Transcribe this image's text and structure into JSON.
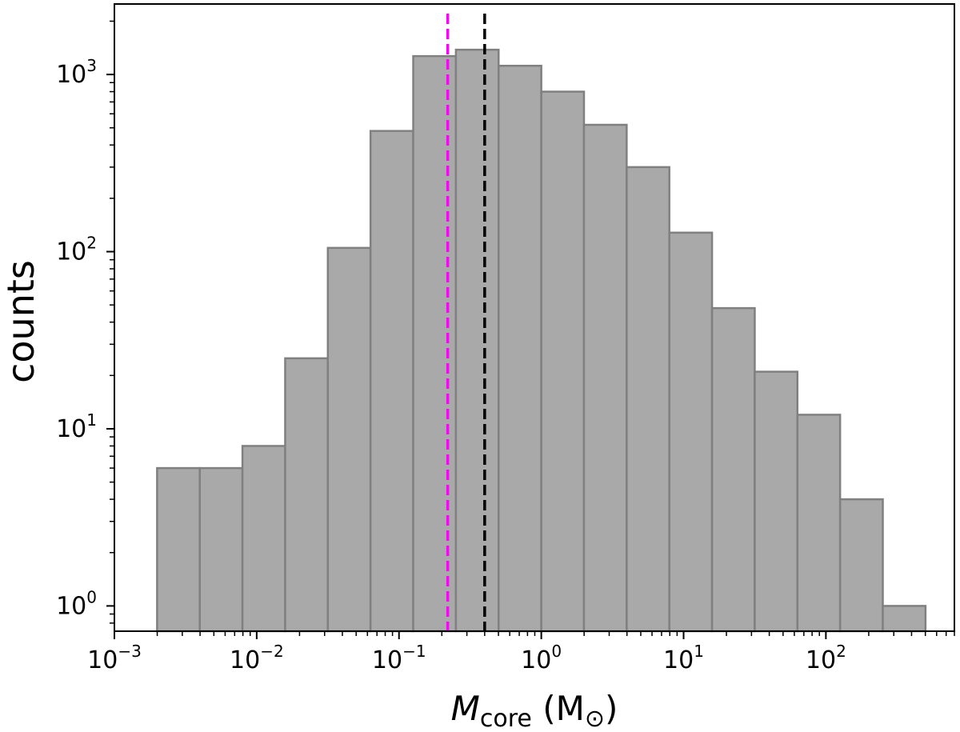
{
  "chart_data": {
    "type": "bar",
    "histogram": true,
    "x_scale": "log",
    "y_scale": "log",
    "xlim": [
      0.001,
      800
    ],
    "ylim": [
      0.72,
      2500
    ],
    "xlabel": {
      "symbol": "M",
      "subscript": "core",
      "unit_open": "(M",
      "unit_sub": "⊙",
      "unit_close": ")"
    },
    "ylabel": "counts",
    "bin_edges_log10": [
      -2.7,
      -2.4,
      -2.1,
      -1.8,
      -1.5,
      -1.2,
      -0.9,
      -0.6,
      -0.3,
      0.0,
      0.3,
      0.6,
      0.9,
      1.2,
      1.5,
      1.8,
      2.1,
      2.4,
      2.7
    ],
    "counts": [
      6,
      6,
      8,
      25,
      105,
      480,
      1270,
      1380,
      1120,
      800,
      520,
      300,
      128,
      48,
      21,
      12,
      4,
      1
    ],
    "reference_lines": [
      {
        "x": 0.22,
        "color": "#ff00ff",
        "style": "dashed"
      },
      {
        "x": 0.4,
        "color": "#000000",
        "style": "dashed"
      }
    ],
    "x_ticks": [
      {
        "value": 0.001,
        "base": "10",
        "exp": "−3"
      },
      {
        "value": 0.01,
        "base": "10",
        "exp": "−2"
      },
      {
        "value": 0.1,
        "base": "10",
        "exp": "−1"
      },
      {
        "value": 1,
        "base": "10",
        "exp": "0"
      },
      {
        "value": 10,
        "base": "10",
        "exp": "1"
      },
      {
        "value": 100,
        "base": "10",
        "exp": "2"
      }
    ],
    "y_ticks": [
      {
        "value": 1,
        "base": "10",
        "exp": "0"
      },
      {
        "value": 10,
        "base": "10",
        "exp": "1"
      },
      {
        "value": 100,
        "base": "10",
        "exp": "2"
      },
      {
        "value": 1000,
        "base": "10",
        "exp": "3"
      }
    ],
    "grid": false,
    "colors": {
      "bar_fill": "#a9a9a9",
      "bar_edge": "#808080"
    }
  }
}
